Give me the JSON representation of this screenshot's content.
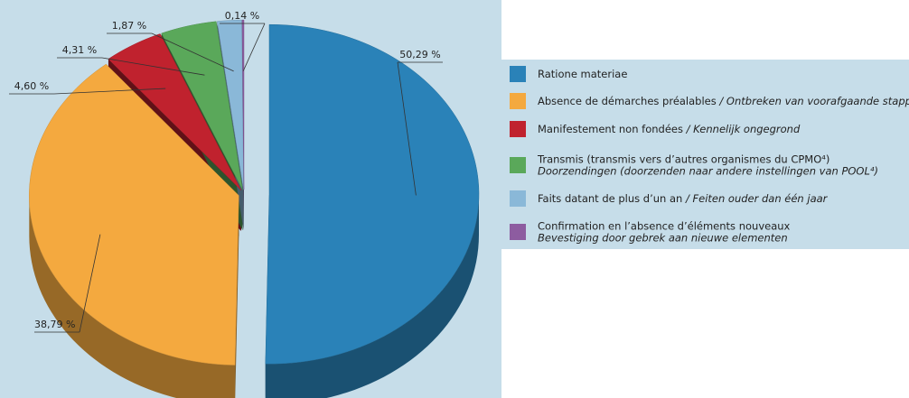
{
  "chart_data": {
    "type": "pie",
    "categories": [
      "Ratione materiae",
      "Absence de démarches préalables / Ontbreken van voorafgaande stappen",
      "Manifestement non fondées / Kennelijk ongegrond",
      "Transmis (transmis vers d’autres organismes du CPMO⁴)\nDoorzendingen (doorzenden naar andere instellingen van POOL⁴)",
      "Faits datant de plus d’un an / Feiten ouder dan één jaar",
      "Confirmation en l’absence d’éléments nouveaux\nBevestiging door gebrek aan nieuwe elementen"
    ],
    "values": [
      50.29,
      38.79,
      4.6,
      4.31,
      1.87,
      0.14
    ],
    "value_labels": [
      "50,29 %",
      "38,79 %",
      "4,60 %",
      "4,31 %",
      "1,87 %",
      "0,14 %"
    ],
    "colors": [
      "#2a82b8",
      "#f4a93f",
      "#c0222e",
      "#5aa85a",
      "#8ab8d8",
      "#8d5ca0"
    ]
  }
}
